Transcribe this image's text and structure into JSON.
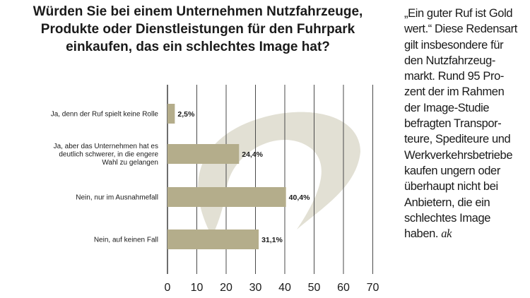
{
  "chart_data": {
    "type": "bar",
    "orientation": "horizontal",
    "title_lines": [
      "Würden Sie bei einem Unternehmen Nutzfahrzeuge,",
      "Produkte oder Dienstleistungen für den Fuhrpark",
      "einkaufen, das ein schlechtes Image hat?"
    ],
    "categories": [
      [
        "Ja, denn der Ruf spielt keine Rolle"
      ],
      [
        "Ja, aber das Unternehmen hat es",
        "deutlich schwerer, in die engere",
        "Wahl zu gelangen"
      ],
      [
        "Nein, nur im Ausnahmefall"
      ],
      [
        "Nein, auf keinen Fall"
      ]
    ],
    "values": [
      2.5,
      24.4,
      40.4,
      31.1
    ],
    "value_labels": [
      "2,5%",
      "24,4%",
      "40,4%",
      "31,1%"
    ],
    "xlim": [
      0,
      70
    ],
    "xticks": [
      "0",
      "10",
      "20",
      "30",
      "40",
      "50",
      "60",
      "70"
    ],
    "grid": true,
    "colors": {
      "bar": "#b4ad8b",
      "grid": "#4a4a4a",
      "watermark": "#e2e0d4",
      "text": "#1a1a1a"
    }
  },
  "sidebar_text": {
    "lines": [
      "„Ein guter Ruf ist Gold",
      "wert.“ Diese Redensart",
      "gilt insbesondere für",
      "den Nutzfahrzeug-",
      "markt.  Rund 95 Pro-",
      "zent der im Rahmen",
      "der Image-Studie",
      "befragten Transpor-",
      "teure, Spediteure und",
      "Werkverkehrsbetriebe",
      "kaufen ungern oder",
      "überhaupt nicht bei",
      "Anbietern, die ein",
      "schlechtes Image"
    ],
    "last_line": "haben.",
    "signature": "ak"
  }
}
